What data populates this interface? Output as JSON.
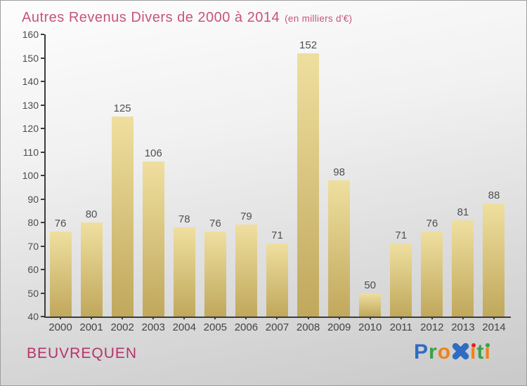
{
  "title": {
    "main": "Autres Revenus Divers de 2000 à 2014",
    "unit": "(en milliers d'€)"
  },
  "footer": {
    "commune": "BEUVREQUEN"
  },
  "logo": {
    "name": "Proxiti",
    "letters": [
      {
        "ch": "P",
        "color": "#2f6cc3"
      },
      {
        "ch": "r",
        "color": "#3aa244"
      },
      {
        "ch": "o",
        "color": "#f28118"
      },
      {
        "ch": "x",
        "color": "#2f6cc3",
        "glyph": "x-cross-icon"
      },
      {
        "ch": "i",
        "color": "#f28118",
        "dot": "#e2231a"
      },
      {
        "ch": "t",
        "color": "#3aa244"
      },
      {
        "ch": "i",
        "color": "#f28118",
        "dot": "#3aa244"
      }
    ]
  },
  "colors": {
    "title_pink": "#c8537c",
    "commune_pink": "#b5336a",
    "axis": "#3c3c3c",
    "tick_label": "#4d4d4d",
    "value_label": "#4f4f4f",
    "bar_top": "#efdf9f",
    "bar_bottom": "#c0a85c"
  },
  "chart_data": {
    "type": "bar",
    "title": "Autres Revenus Divers de 2000 à 2014 (en milliers d'€)",
    "categories": [
      "2000",
      "2001",
      "2002",
      "2003",
      "2004",
      "2005",
      "2006",
      "2007",
      "2008",
      "2009",
      "2010",
      "2011",
      "2012",
      "2013",
      "2014"
    ],
    "values": [
      76,
      80,
      125,
      106,
      78,
      76,
      79,
      71,
      152,
      98,
      50,
      71,
      76,
      81,
      88
    ],
    "xlabel": "",
    "ylabel": "",
    "ylim": [
      40,
      160
    ],
    "ytick_step": 10,
    "grid": "off",
    "legend": "none"
  }
}
